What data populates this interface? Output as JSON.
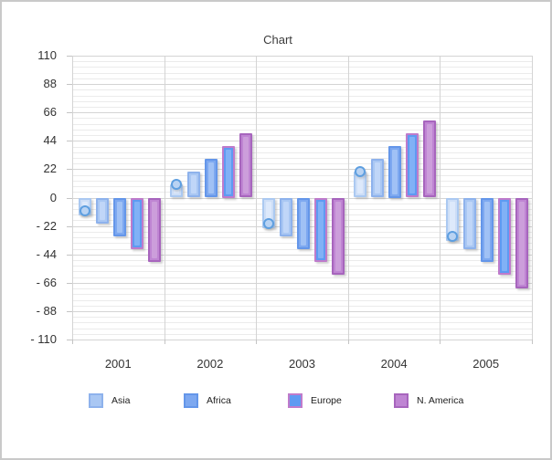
{
  "window": {
    "background": "#ffffff",
    "border_color": "#c9c9c9"
  },
  "chart_data": {
    "type": "bar",
    "title": "Chart",
    "categories": [
      "2001",
      "2002",
      "2003",
      "2004",
      "2005"
    ],
    "series": [
      {
        "name": "",
        "in_legend": false,
        "style": "ball-column",
        "values": [
          -10,
          10,
          -20,
          20,
          -30
        ],
        "fill": "#cddef7",
        "border": "#abc9f1",
        "inner": "#dde9fb",
        "ball_fill": "#b9d3f3",
        "ball_border": "#5e9fe0"
      },
      {
        "name": "Asia",
        "in_legend": true,
        "style": "column",
        "values": [
          -20,
          20,
          -30,
          30,
          -40
        ],
        "fill": "#a9c7f3",
        "border": "#8eb2ec",
        "inner": "#c0d6f8"
      },
      {
        "name": "Africa",
        "in_legend": true,
        "style": "column",
        "values": [
          -30,
          30,
          -40,
          40,
          -50
        ],
        "fill": "#7da8f0",
        "border": "#6496e9",
        "inner": "#a0c1f5"
      },
      {
        "name": "Europe",
        "in_legend": true,
        "style": "column",
        "values": [
          -40,
          40,
          -50,
          50,
          -60
        ],
        "fill": "#5e9af2",
        "border": "#bf7bcb",
        "inner": "#81b1f6"
      },
      {
        "name": "N. America",
        "in_legend": true,
        "style": "column",
        "values": [
          -50,
          50,
          -60,
          60,
          -70
        ],
        "fill": "#bf85d3",
        "border": "#a765bd",
        "inner": "#cc9edb"
      }
    ],
    "y_axis": {
      "min": -110,
      "max": 110,
      "major_step": 22,
      "minor_step": 4.4,
      "tick_labels": [
        "110",
        "88",
        "66",
        "44",
        "22",
        "0",
        "- 22",
        "- 44",
        "- 66",
        "- 88",
        "- 110"
      ]
    },
    "x_axis": {
      "labels": [
        "2001",
        "2002",
        "2003",
        "2004",
        "2005"
      ]
    },
    "legend": {
      "position": "bottom",
      "entries": [
        "Asia",
        "Africa",
        "Europe",
        "N. America"
      ]
    },
    "grid": {
      "major_color": "#d4d4d4",
      "minor_color": "#ebebeb",
      "vertical_color": "#d4d4d4"
    }
  }
}
